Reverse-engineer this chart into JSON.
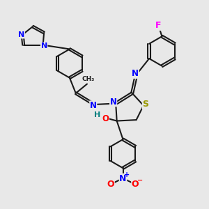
{
  "bg_color": "#e8e8e8",
  "bond_color": "#1a1a1a",
  "bond_width": 1.5,
  "atom_colors": {
    "N": "#0000ff",
    "O": "#ff0000",
    "S": "#999900",
    "F": "#ff00ff",
    "H": "#008080",
    "C": "#1a1a1a"
  },
  "font_size": 8.5,
  "figsize": [
    3.0,
    3.0
  ],
  "dpi": 100
}
